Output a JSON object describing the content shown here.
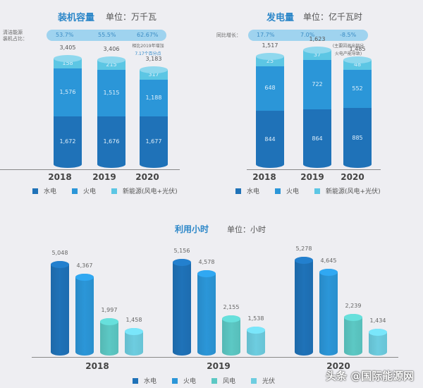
{
  "colors": {
    "hydro": "#1f72b8",
    "thermal": "#2b96d8",
    "new_energy": "#5cc6e4",
    "wind": "#5cc8c4",
    "solar": "#6dcde0",
    "title": "#2a86c8",
    "pill": "#9fd3ef"
  },
  "capacity": {
    "title": "装机容量",
    "unit": "单位：万千瓦",
    "ratio_label_line1": "清洁能源",
    "ratio_label_line2": "装机占比：",
    "ratios": [
      "53.7%",
      "55.5%",
      "62.67%"
    ],
    "note_line1": "相比2019年增加",
    "note_line2": "7.17个百分点",
    "years": [
      "2018",
      "2019",
      "2020"
    ],
    "totals": [
      "3,405",
      "3,406",
      "3,183"
    ],
    "hydro": [
      "1,672",
      "1,676",
      "1,677"
    ],
    "thermal": [
      "1,576",
      "1,515",
      "1,188"
    ],
    "new_energy": [
      "158",
      "215",
      "317"
    ],
    "legend": [
      "水电",
      "火电",
      "新能源(风电+光伏)"
    ]
  },
  "generation": {
    "title": "发电量",
    "unit": "单位：亿千瓦时",
    "growth_label": "同比增长：",
    "growth": [
      "17.7%",
      "7.0%",
      "-8.5%"
    ],
    "note_line1": "(主要因退出部分",
    "note_line2": "火电产能导致)",
    "years": [
      "2018",
      "2019",
      "2020"
    ],
    "totals": [
      "1,517",
      "1,623",
      "1,485"
    ],
    "hydro": [
      "844",
      "864",
      "885"
    ],
    "thermal": [
      "648",
      "722",
      "552"
    ],
    "new_energy": [
      "25",
      "37",
      "48"
    ],
    "legend": [
      "水电",
      "火电",
      "新能源(风电+光伏)"
    ]
  },
  "hours": {
    "title": "利用小时",
    "unit": "单位：小时",
    "years": [
      "2018",
      "2019",
      "2020"
    ],
    "values": [
      [
        "5,048",
        "4,367",
        "1,997",
        "1,458"
      ],
      [
        "5,156",
        "4,578",
        "2,155",
        "1,538"
      ],
      [
        "5,278",
        "4,645",
        "2,239",
        "1,434"
      ]
    ],
    "legend": [
      "水电",
      "火电",
      "风电",
      "光伏"
    ]
  },
  "watermark": "头条 @国际能源网",
  "chart_data": [
    {
      "type": "bar",
      "stacked": true,
      "title": "装机容量",
      "unit": "万千瓦",
      "categories": [
        "2018",
        "2019",
        "2020"
      ],
      "series": [
        {
          "name": "水电",
          "values": [
            1672,
            1676,
            1677
          ]
        },
        {
          "name": "火电",
          "values": [
            1576,
            1515,
            1188
          ]
        },
        {
          "name": "新能源(风电+光伏)",
          "values": [
            158,
            215,
            317
          ]
        }
      ],
      "totals": [
        3405,
        3406,
        3183
      ],
      "annotations": {
        "清洁能源装机占比": [
          "53.7%",
          "55.5%",
          "62.67%"
        ],
        "note": "相比2019年增加7.17个百分点"
      },
      "legend_position": "bottom"
    },
    {
      "type": "bar",
      "stacked": true,
      "title": "发电量",
      "unit": "亿千瓦时",
      "categories": [
        "2018",
        "2019",
        "2020"
      ],
      "series": [
        {
          "name": "水电",
          "values": [
            844,
            864,
            885
          ]
        },
        {
          "name": "火电",
          "values": [
            648,
            722,
            552
          ]
        },
        {
          "name": "新能源(风电+光伏)",
          "values": [
            25,
            37,
            48
          ]
        }
      ],
      "totals": [
        1517,
        1623,
        1485
      ],
      "annotations": {
        "同比增长": [
          "17.7%",
          "7.0%",
          "-8.5%"
        ],
        "note": "(主要因退出部分火电产能导致)"
      },
      "legend_position": "bottom"
    },
    {
      "type": "bar",
      "title": "利用小时",
      "unit": "小时",
      "categories": [
        "2018",
        "2019",
        "2020"
      ],
      "series": [
        {
          "name": "水电",
          "values": [
            5048,
            5156,
            5278
          ]
        },
        {
          "name": "火电",
          "values": [
            4367,
            4578,
            4645
          ]
        },
        {
          "name": "风电",
          "values": [
            1997,
            2155,
            2239
          ]
        },
        {
          "name": "光伏",
          "values": [
            1458,
            1538,
            1434
          ]
        }
      ],
      "legend_position": "bottom"
    }
  ]
}
